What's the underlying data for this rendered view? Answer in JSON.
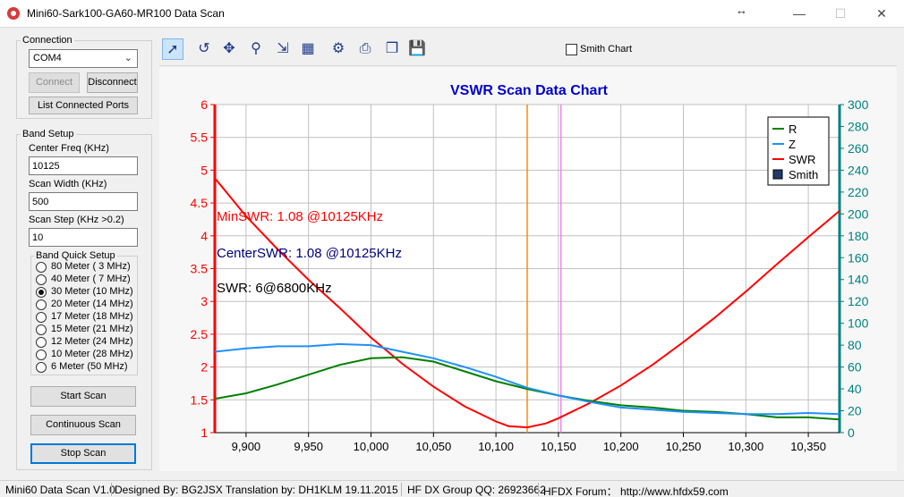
{
  "window": {
    "title": "Mini60-Sark100-GA60-MR100 Data Scan",
    "resize_glyph": "↔",
    "minimize": "—",
    "maximize": "☐",
    "close": "✕"
  },
  "connection": {
    "group_label": "Connection",
    "port_value": "COM4",
    "connect_label": "Connect",
    "disconnect_label": "Disconnect",
    "list_ports_label": "List Connected Ports"
  },
  "band_setup": {
    "group_label": "Band Setup",
    "center_freq_label": "Center Freq  (KHz)",
    "center_freq_value": "10125",
    "scan_width_label": "Scan Width   (KHz)",
    "scan_width_value": "500",
    "scan_step_label": "Scan Step     (KHz >0.2)",
    "scan_step_value": "10"
  },
  "quick_setup": {
    "group_label": "Band Quick Setup",
    "bands": [
      {
        "label": "80 Meter  (  3 MHz)",
        "selected": false
      },
      {
        "label": "40 Meter  (  7 MHz)",
        "selected": false
      },
      {
        "label": "30 Meter  (10 MHz)",
        "selected": true
      },
      {
        "label": "20 Meter  (14 MHz)",
        "selected": false
      },
      {
        "label": "17 Meter  (18 MHz)",
        "selected": false
      },
      {
        "label": "15 Meter  (21 MHz)",
        "selected": false
      },
      {
        "label": "12 Meter  (24 MHz)",
        "selected": false
      },
      {
        "label": "10 Meter  (28 MHz)",
        "selected": false
      },
      {
        "label": "6 Meter   (50 MHz)",
        "selected": false
      }
    ]
  },
  "actions": {
    "start_scan": "Start Scan",
    "continuous_scan": "Continuous Scan",
    "stop_scan": "Stop Scan"
  },
  "toolbar": {
    "tools": [
      "pointer-icon",
      "undo-icon",
      "pan-icon",
      "zoom-icon",
      "export-icon",
      "table-icon",
      "settings-icon",
      "print-icon",
      "copy-icon",
      "save-icon"
    ],
    "glyphs": [
      "➚",
      "↺",
      "✥",
      "⚲",
      "⇲",
      "▦",
      "⚙",
      "⎙",
      "❐",
      "💾"
    ],
    "smith_chart_label": "Smith Chart",
    "smith_chart_checked": false
  },
  "colors": {
    "swr": "#ff0000",
    "r": "#008000",
    "z": "#1e90ff",
    "title": "#0000cc",
    "right_axis": "#008080",
    "center_marker": "#ff8c00",
    "marker2": "#ee82ee"
  },
  "chart_data": {
    "type": "line",
    "title": "VSWR Scan Data Chart",
    "xlim": [
      9875,
      10375
    ],
    "ylim": [
      1,
      6
    ],
    "y2lim": [
      0,
      300
    ],
    "x_ticks": [
      "9,900",
      "9,950",
      "10,000",
      "10,050",
      "10,100",
      "10,150",
      "10,200",
      "10,250",
      "10,300",
      "10,350"
    ],
    "x_tick_values": [
      9900,
      9950,
      10000,
      10050,
      10100,
      10150,
      10200,
      10250,
      10300,
      10350
    ],
    "y_ticks": [
      "1",
      "1.5",
      "2",
      "2.5",
      "3",
      "3.5",
      "4",
      "4.5",
      "5",
      "5.5",
      "6"
    ],
    "y_tick_values": [
      1,
      1.5,
      2,
      2.5,
      3,
      3.5,
      4,
      4.5,
      5,
      5.5,
      6
    ],
    "y2_ticks": [
      "0",
      "20",
      "40",
      "60",
      "80",
      "100",
      "120",
      "140",
      "160",
      "180",
      "200",
      "220",
      "240",
      "260",
      "280",
      "300"
    ],
    "y2_tick_values": [
      0,
      20,
      40,
      60,
      80,
      100,
      120,
      140,
      160,
      180,
      200,
      220,
      240,
      260,
      280,
      300
    ],
    "grid": true,
    "legend_position": "top-right",
    "legend": [
      "R",
      "Z",
      "SWR",
      "Smith"
    ],
    "markers": [
      10125,
      10152
    ],
    "annotations": {
      "min_swr": "MinSWR: 1.08 @10125KHz",
      "center_swr": "CenterSWR: 1.08 @10125KHz",
      "swr_at": "SWR: 6@6800KHz"
    },
    "series": [
      {
        "name": "SWR",
        "axis": "left",
        "x": [
          9875,
          9900,
          9925,
          9950,
          9975,
          10000,
          10025,
          10050,
          10075,
          10100,
          10110,
          10125,
          10140,
          10150,
          10175,
          10200,
          10225,
          10250,
          10275,
          10300,
          10325,
          10350,
          10375
        ],
        "values": [
          4.88,
          4.3,
          3.8,
          3.33,
          2.9,
          2.45,
          2.05,
          1.7,
          1.4,
          1.17,
          1.1,
          1.08,
          1.14,
          1.22,
          1.45,
          1.72,
          2.03,
          2.38,
          2.75,
          3.15,
          3.57,
          3.98,
          4.38
        ]
      },
      {
        "name": "R",
        "axis": "right",
        "x": [
          9875,
          9900,
          9925,
          9950,
          9975,
          10000,
          10025,
          10050,
          10075,
          10100,
          10125,
          10150,
          10175,
          10200,
          10225,
          10250,
          10275,
          10300,
          10325,
          10350,
          10375
        ],
        "values": [
          31,
          36,
          44,
          53,
          62,
          68,
          69,
          65,
          56,
          47,
          40,
          34,
          29,
          25,
          23,
          20,
          19,
          17,
          14,
          14,
          12
        ]
      },
      {
        "name": "Z",
        "axis": "right",
        "x": [
          9875,
          9900,
          9925,
          9950,
          9975,
          10000,
          10025,
          10050,
          10075,
          10100,
          10125,
          10150,
          10175,
          10200,
          10225,
          10250,
          10275,
          10300,
          10325,
          10350,
          10375
        ],
        "values": [
          74,
          77,
          79,
          79,
          81,
          80,
          74,
          68,
          60,
          51,
          41,
          34,
          28,
          23,
          21,
          19,
          18,
          17,
          17,
          18,
          17
        ]
      }
    ]
  },
  "status": {
    "version": "Mini60 Data Scan V1.0",
    "credits": "Designed By: BG2JSX  Translation by: DH1KLM   19.11.2015",
    "group": "HF DX Group QQ: 26923662",
    "forum": "HFDX Forum：  http://www.hfdx59.com"
  }
}
